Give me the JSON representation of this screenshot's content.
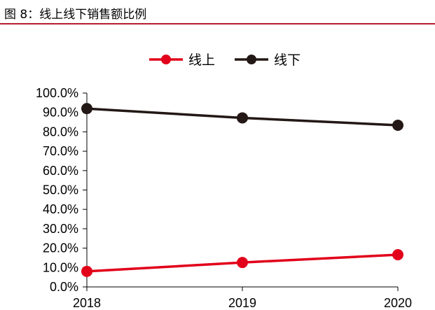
{
  "figure_title": "图 8：线上线下销售额比例",
  "colors": {
    "accent": "#b3202d"
  },
  "chart_data": {
    "type": "line",
    "title": "",
    "xlabel": "",
    "ylabel": "",
    "x": [
      "2018",
      "2019",
      "2020"
    ],
    "ylim": [
      0,
      100
    ],
    "yticks": [
      0,
      10,
      20,
      30,
      40,
      50,
      60,
      70,
      80,
      90,
      100
    ],
    "ytick_labels": [
      "0.0%",
      "10.0%",
      "20.0%",
      "30.0%",
      "40.0%",
      "50.0%",
      "60.0%",
      "70.0%",
      "80.0%",
      "90.0%",
      "100.0%"
    ],
    "grid": false,
    "legend": "top-center",
    "series": [
      {
        "name": "线上",
        "color": "#e2001a",
        "values": [
          8,
          12.6,
          16.6
        ]
      },
      {
        "name": "线下",
        "color": "#231815",
        "values": [
          92,
          87.2,
          83.4
        ]
      }
    ]
  }
}
